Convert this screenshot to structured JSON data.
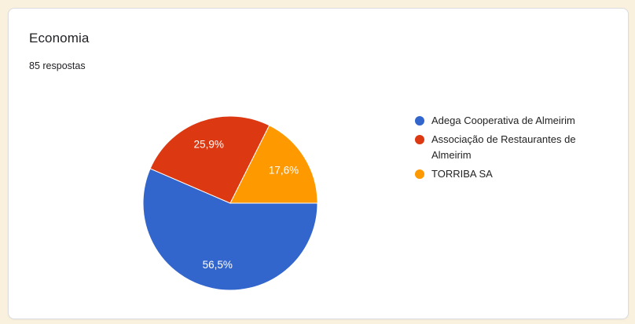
{
  "page": {
    "background_color": "#FAF0DE",
    "card_background": "#FFFFFF",
    "card_border_color": "#DADCE0"
  },
  "card": {
    "title": "Economia",
    "subtitle": "85 respostas"
  },
  "chart_data": {
    "type": "pie",
    "title": "Economia",
    "subtitle": "85 respostas",
    "legend_position": "right",
    "start_angle_deg": 0,
    "direction": "clockwise",
    "label_color": "#FFFFFF",
    "slices": [
      {
        "label": "Adega Cooperativa de Almeirim",
        "percent": 56.5,
        "display": "56,5%",
        "color": "#3366CC"
      },
      {
        "label": "Associação de Restaurantes de Almeirim",
        "percent": 25.9,
        "display": "25,9%",
        "color": "#DC3912"
      },
      {
        "label": "TORRIBA SA",
        "percent": 17.6,
        "display": "17,6%",
        "color": "#FF9900"
      }
    ]
  }
}
